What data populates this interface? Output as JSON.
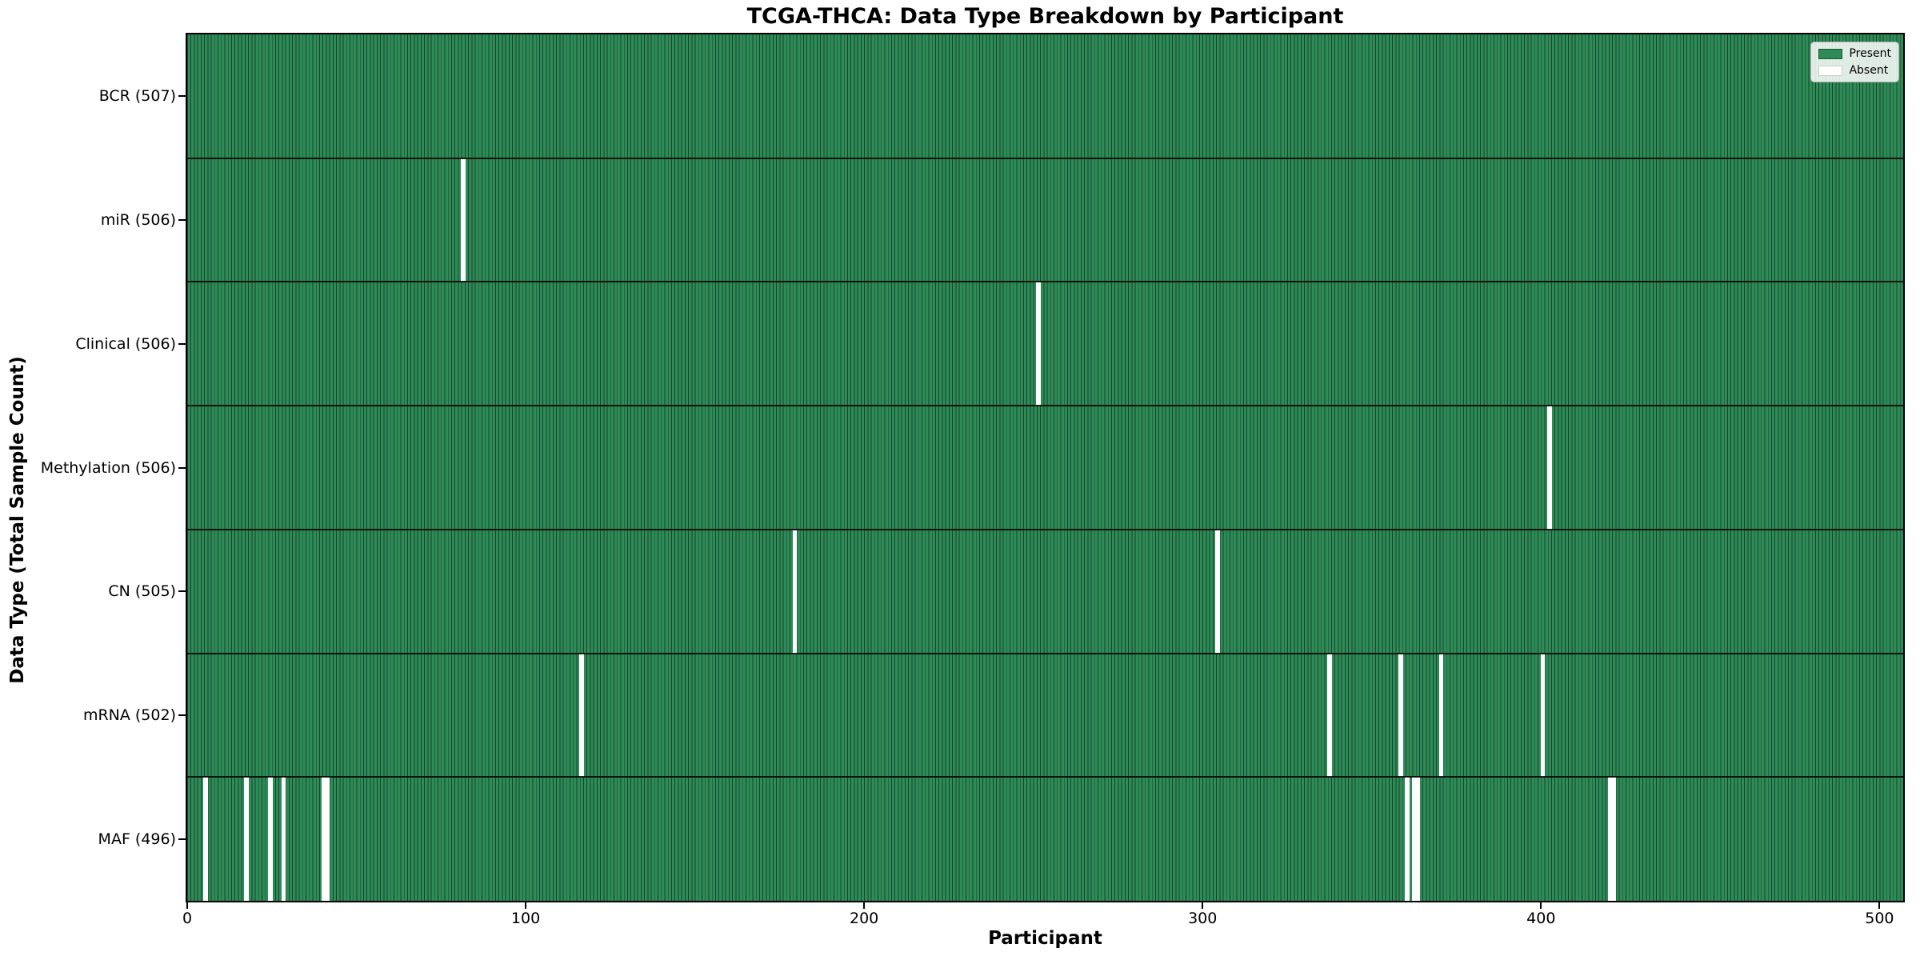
{
  "chart_data": {
    "type": "heatmap",
    "title": "TCGA-THCA: Data Type Breakdown by Participant",
    "xlabel": "Participant",
    "ylabel": "Data Type (Total Sample Count)",
    "x_ticks": [
      0,
      100,
      200,
      300,
      400,
      500
    ],
    "xlim": [
      0,
      507
    ],
    "n_participants": 507,
    "grid": false,
    "legend_position": "upper right",
    "colors": {
      "present": "#2e8b57",
      "bar_edge": "rgba(0,0,0,0.5)",
      "absent": "#ffffff",
      "row_separator": "rgba(0,0,0,0.85)"
    },
    "legend": [
      {
        "label": "Present",
        "color": "#2e8b57"
      },
      {
        "label": "Absent",
        "color": "#ffffff"
      }
    ],
    "rows": [
      {
        "label": "BCR (507)",
        "total": 507,
        "absent_participants": []
      },
      {
        "label": "miR (506)",
        "total": 506,
        "absent_participants": [
          81
        ]
      },
      {
        "label": "Clinical (506)",
        "total": 506,
        "absent_participants": [
          251
        ]
      },
      {
        "label": "Methylation (506)",
        "total": 506,
        "absent_participants": [
          402
        ]
      },
      {
        "label": "CN (505)",
        "total": 505,
        "absent_participants": [
          179,
          304
        ]
      },
      {
        "label": "mRNA (502)",
        "total": 502,
        "absent_participants": [
          116,
          337,
          358,
          370,
          400
        ]
      },
      {
        "label": "MAF (496)",
        "total": 496,
        "absent_participants": [
          5,
          17,
          24,
          28,
          40,
          41,
          360,
          362,
          363,
          420,
          421
        ]
      }
    ]
  }
}
